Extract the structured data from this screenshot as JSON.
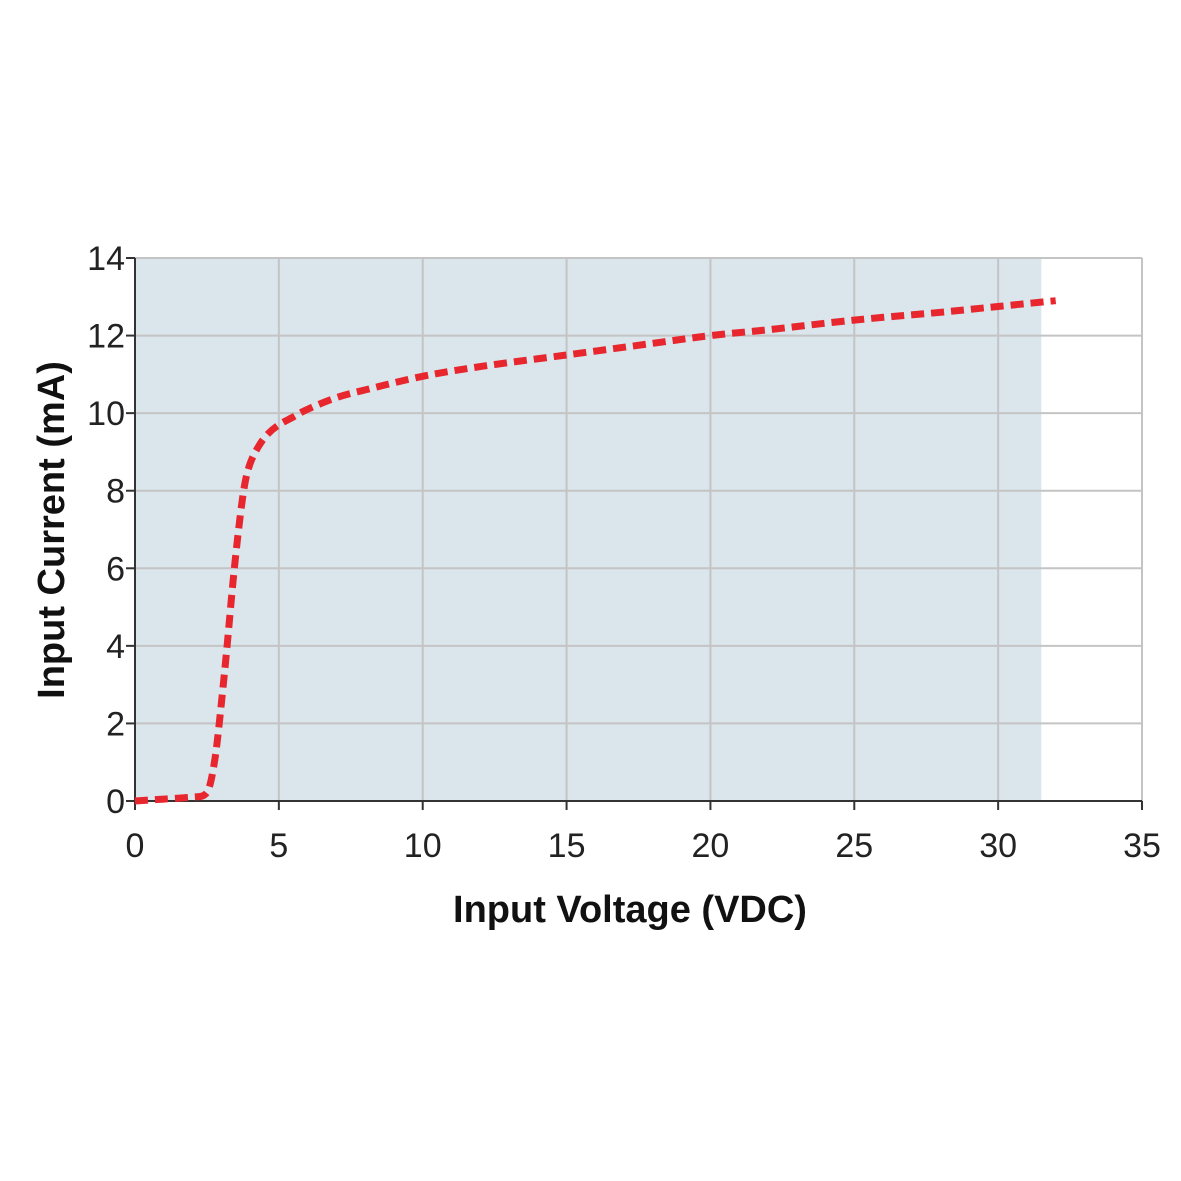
{
  "chart_data": {
    "type": "area",
    "xlabel": "Input Voltage (VDC)",
    "ylabel": "Input Current (mA)",
    "xlim": [
      0,
      35
    ],
    "ylim": [
      0,
      14
    ],
    "x_ticks": [
      "0",
      "5",
      "10",
      "15",
      "20",
      "25",
      "30",
      "35"
    ],
    "y_ticks": [
      "0",
      "2",
      "4",
      "6",
      "8",
      "10",
      "12",
      "14"
    ],
    "grid": true,
    "shaded_region": {
      "x_start": 0,
      "x_end": 31.5,
      "color": "#dae5ec"
    },
    "series": [
      {
        "style": "dashed",
        "color": "#e8262d",
        "x": [
          0,
          1,
          2,
          2.4,
          2.6,
          2.8,
          3.0,
          3.2,
          3.4,
          3.6,
          3.8,
          4.0,
          4.3,
          4.6,
          5.0,
          5.5,
          6,
          7,
          8,
          10,
          12,
          15,
          18,
          20,
          22,
          25,
          28,
          30,
          32
        ],
        "y": [
          0,
          0.05,
          0.1,
          0.15,
          0.4,
          1.2,
          2.5,
          4.0,
          5.6,
          7.0,
          8.1,
          8.7,
          9.15,
          9.45,
          9.7,
          9.9,
          10.1,
          10.4,
          10.6,
          10.95,
          11.2,
          11.5,
          11.8,
          12.0,
          12.15,
          12.4,
          12.6,
          12.75,
          12.9
        ]
      }
    ]
  }
}
